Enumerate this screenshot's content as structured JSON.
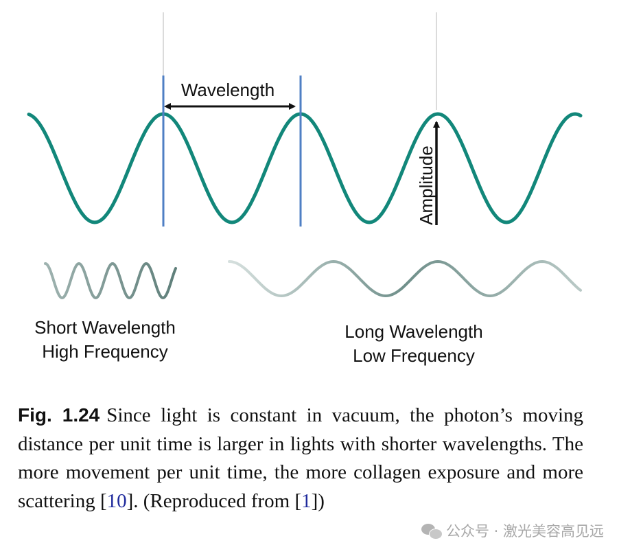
{
  "diagram": {
    "wavelength_label": "Wavelength",
    "amplitude_label": "Amplitude",
    "short_label_line1": "Short Wavelength",
    "short_label_line2": "High Frequency",
    "long_label_line1": "Long Wavelength",
    "long_label_line2": "Low Frequency",
    "colors": {
      "main_wave": "#12877a",
      "marker_line": "#4f7fc4",
      "guide_line": "#cfcfcf",
      "arrow": "#111111",
      "small_wave": "#6f8f8a"
    }
  },
  "caption": {
    "fig_label": "Fig. 1.24",
    "text_part1": "Since light is constant in vacuum, the photon’s moving distance per unit time is larger in lights with shorter wavelengths. The more movement per unit time, the more collagen exposure and more scattering [",
    "ref1": "10",
    "text_part2": "]. (Reproduced from [",
    "ref2": "1",
    "text_part3": "])"
  },
  "watermark": {
    "text": "公众号 · 激光美容高见远"
  }
}
